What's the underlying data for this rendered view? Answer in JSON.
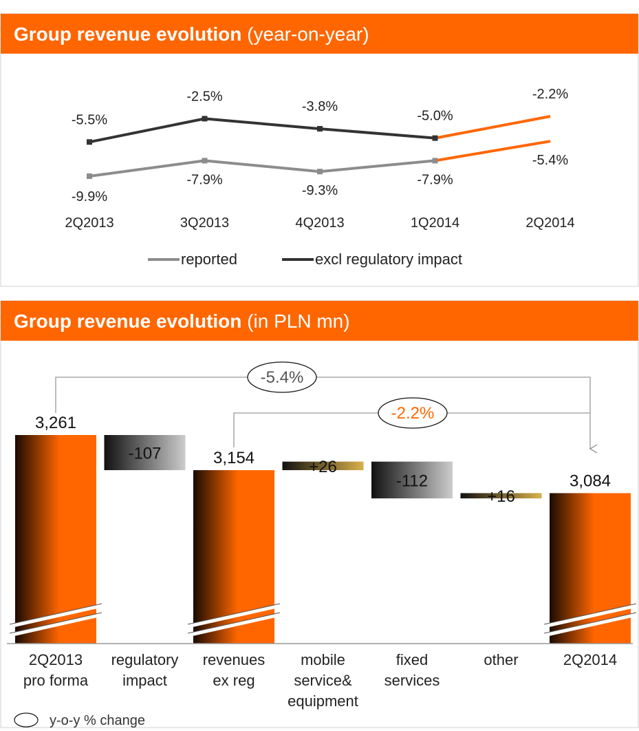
{
  "chart_data": [
    {
      "type": "line",
      "title": "Group revenue evolution",
      "title_note": "(year-on-year)",
      "categories": [
        "2Q2013",
        "3Q2013",
        "4Q2013",
        "1Q2014",
        "2Q2014"
      ],
      "last_segment_color": "#ff6600",
      "series": [
        {
          "name": "reported",
          "color": "#8c8c8c",
          "values": [
            -9.9,
            -7.9,
            -9.3,
            -7.9,
            -5.4
          ],
          "value_labels": [
            "-9.9%",
            "-7.9%",
            "-9.3%",
            "-7.9%",
            "-5.4%"
          ]
        },
        {
          "name": "excl regulatory impact",
          "color": "#333333",
          "values": [
            -5.5,
            -2.5,
            -3.8,
            -5.0,
            -2.2
          ],
          "value_labels": [
            "-5.5%",
            "-2.5%",
            "-3.8%",
            "-5.0%",
            "-2.2%"
          ]
        }
      ]
    },
    {
      "type": "waterfall",
      "title": "Group revenue evolution",
      "title_note": "(in PLN mn)",
      "categories": [
        "2Q2013\npro forma",
        "regulatory\nimpact",
        "revenues\nex reg",
        "mobile\nservice&\nequipment",
        "fixed\nservices",
        "other",
        "2Q2014"
      ],
      "values": [
        3261,
        -107,
        3154,
        26,
        -112,
        16,
        3084
      ],
      "value_labels": [
        "3,261",
        "-107",
        "3,154",
        "+26",
        "-112",
        "+16",
        "3,084"
      ],
      "total_color": "#ff6600",
      "increase_color": "#d9b04a",
      "decrease_color": "#cccccc",
      "annotations": [
        {
          "text": "-5.4%",
          "from": "2Q2013\npro forma",
          "to": "2Q2014"
        },
        {
          "text": "-2.2%",
          "from": "revenues\nex reg",
          "to": "2Q2014",
          "color": "#ff6600"
        }
      ],
      "legend": "y-o-y % change"
    }
  ]
}
